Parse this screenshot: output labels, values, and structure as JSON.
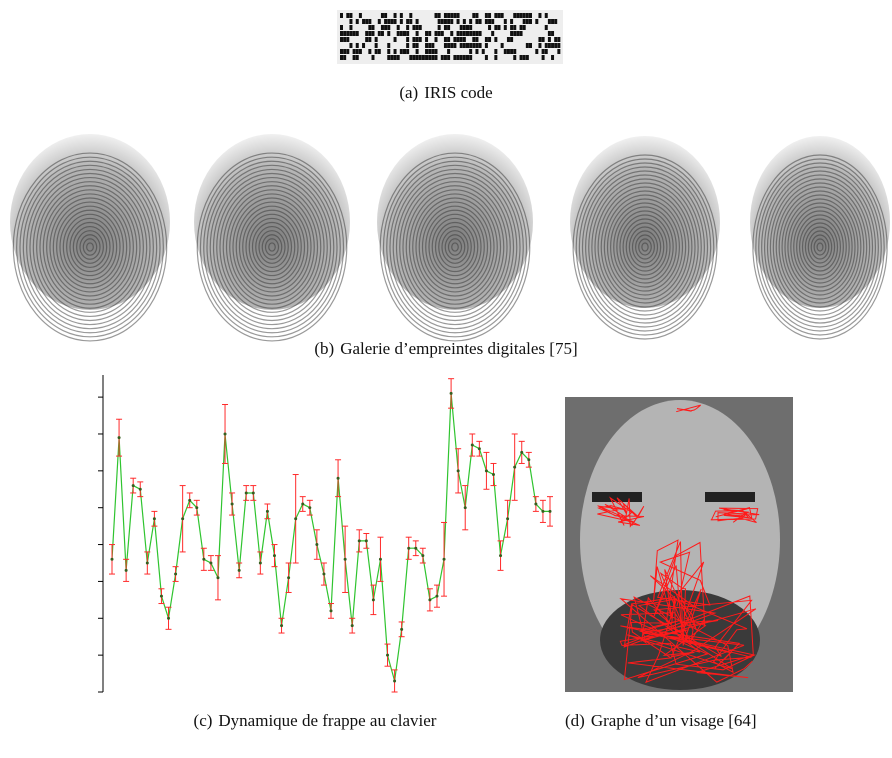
{
  "figure": {
    "panels": [
      {
        "label": "(a)",
        "caption": "IRIS code"
      },
      {
        "label": "(b)",
        "caption": "Galerie d’empreintes digitales [75]"
      },
      {
        "label": "(c)",
        "caption": "Dynamique de frappe au clavier"
      },
      {
        "label": "(d)",
        "caption": "Graphe d’un visage [64]"
      }
    ]
  },
  "chart_data": {
    "type": "line",
    "values": [
      3.6,
      6.9,
      3.3,
      5.6,
      5.5,
      3.5,
      4.7,
      2.6,
      2.0,
      3.2,
      4.7,
      5.2,
      5.0,
      3.6,
      3.5,
      3.1,
      7.0,
      5.1,
      3.3,
      5.4,
      5.4,
      3.5,
      4.9,
      3.7,
      1.8,
      3.1,
      4.7,
      5.1,
      5.0,
      4.0,
      3.2,
      2.2,
      5.8,
      3.6,
      1.8,
      4.1,
      4.1,
      2.5,
      3.6,
      1.0,
      0.3,
      1.7,
      3.9,
      3.9,
      3.7,
      2.5,
      2.6,
      3.6,
      8.1,
      6.0,
      5.0,
      6.7,
      6.6,
      6.0,
      5.9,
      3.7,
      4.7,
      6.1,
      6.5,
      6.3,
      5.1,
      4.9,
      4.9
    ],
    "errors": [
      0.4,
      0.5,
      0.3,
      0.2,
      0.2,
      0.3,
      0.2,
      0.2,
      0.3,
      0.2,
      0.9,
      0.2,
      0.2,
      0.3,
      0.2,
      0.6,
      0.8,
      0.3,
      0.2,
      0.2,
      0.2,
      0.3,
      0.2,
      0.3,
      0.2,
      0.4,
      1.2,
      0.2,
      0.2,
      0.4,
      0.3,
      0.2,
      0.5,
      0.9,
      0.2,
      0.3,
      0.2,
      0.4,
      0.6,
      0.3,
      0.3,
      0.2,
      0.3,
      0.2,
      0.2,
      0.3,
      0.3,
      1.0,
      0.4,
      0.6,
      0.6,
      0.3,
      0.2,
      0.5,
      0.3,
      0.4,
      0.5,
      0.9,
      0.3,
      0.2,
      0.2,
      0.3,
      0.4
    ],
    "color": "#2fc42f",
    "error_color": "#ff2a2a",
    "ylim": [
      0,
      8.6
    ],
    "yticks": [
      0,
      1,
      2,
      3,
      4,
      5,
      6,
      7,
      8
    ]
  }
}
